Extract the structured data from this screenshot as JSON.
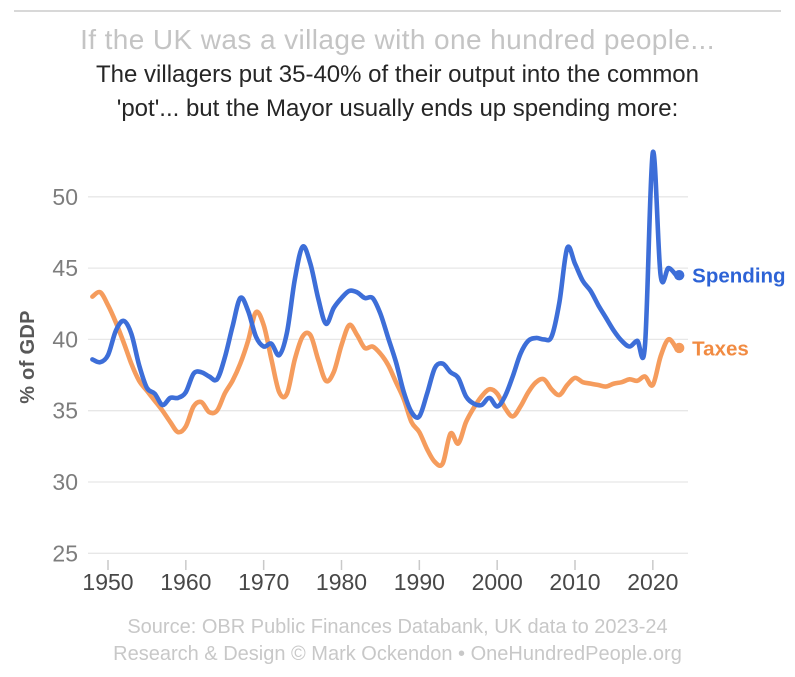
{
  "header": {
    "title": "If the UK was a village with one hundred people...",
    "subtitle_line1": "The villagers put 35-40% of their output into the common",
    "subtitle_line2": "'pot'... but the Mayor usually ends up spending more:"
  },
  "chart_data": {
    "type": "line",
    "title": "If the UK was a village with one hundred people...",
    "xlabel": "",
    "ylabel": "% of GDP",
    "xlim": [
      1948,
      2024
    ],
    "ylim": [
      25,
      54
    ],
    "grid": "horizontal",
    "legend_position": "line-end-labels",
    "start_year": 1948,
    "x_ticks": [
      1950,
      1960,
      1970,
      1980,
      1990,
      2000,
      2010,
      2020
    ],
    "y_ticks": [
      50,
      45,
      40,
      35,
      30,
      25
    ],
    "axis_colors": {
      "y_tick_label": "#7d7d7d",
      "x_tick_label": "#484848",
      "gridline": "#e7e7e7",
      "tick_mark": "#c9c9c9"
    },
    "series": [
      {
        "name": "Taxes",
        "color": "#f59c5d",
        "label_color": "#f18b42",
        "values": [
          43.0,
          43.3,
          42.4,
          41.2,
          39.8,
          38.3,
          37.1,
          36.4,
          35.7,
          35.0,
          34.2,
          33.5,
          33.9,
          35.3,
          35.6,
          34.9,
          35.0,
          36.2,
          37.1,
          38.3,
          39.9,
          41.9,
          41.0,
          38.6,
          36.3,
          36.2,
          38.6,
          40.2,
          40.3,
          38.6,
          37.1,
          37.7,
          39.6,
          41.0,
          40.3,
          39.4,
          39.5,
          39.0,
          38.2,
          37.0,
          35.8,
          34.2,
          33.5,
          32.3,
          31.4,
          31.3,
          33.4,
          32.7,
          34.2,
          35.2,
          36.0,
          36.5,
          36.2,
          35.2,
          34.6,
          35.3,
          36.3,
          37.0,
          37.2,
          36.5,
          36.1,
          36.8,
          37.3,
          37.0,
          36.9,
          36.8,
          36.7,
          36.9,
          37.0,
          37.2,
          37.1,
          37.4,
          36.8,
          38.8,
          40.0,
          39.4
        ]
      },
      {
        "name": "Spending",
        "color": "#3d6ed8",
        "label_color": "#2d63d6",
        "values": [
          38.6,
          38.4,
          38.9,
          40.6,
          41.3,
          40.4,
          38.2,
          36.6,
          36.2,
          35.4,
          35.9,
          35.9,
          36.3,
          37.6,
          37.7,
          37.4,
          37.2,
          38.7,
          40.9,
          42.9,
          42.0,
          40.2,
          39.5,
          39.7,
          38.9,
          40.5,
          44.2,
          46.5,
          45.3,
          42.9,
          41.1,
          42.2,
          42.9,
          43.4,
          43.3,
          42.9,
          42.9,
          41.8,
          40.1,
          38.4,
          36.3,
          34.9,
          34.6,
          36.2,
          38.0,
          38.3,
          37.7,
          37.3,
          36.0,
          35.5,
          35.4,
          35.9,
          35.3,
          36.0,
          37.4,
          39.0,
          39.9,
          40.1,
          40.0,
          40.2,
          42.6,
          46.4,
          45.3,
          44.1,
          43.4,
          42.4,
          41.5,
          40.6,
          39.9,
          39.5,
          39.9,
          39.6,
          53.1,
          44.5,
          45.0,
          44.5
        ]
      }
    ]
  },
  "footer": {
    "line1": "Source: OBR Public Finances Databank, UK data to 2023-24",
    "line2": "Research & Design © Mark Ockendon • OneHundredPeople.org"
  }
}
